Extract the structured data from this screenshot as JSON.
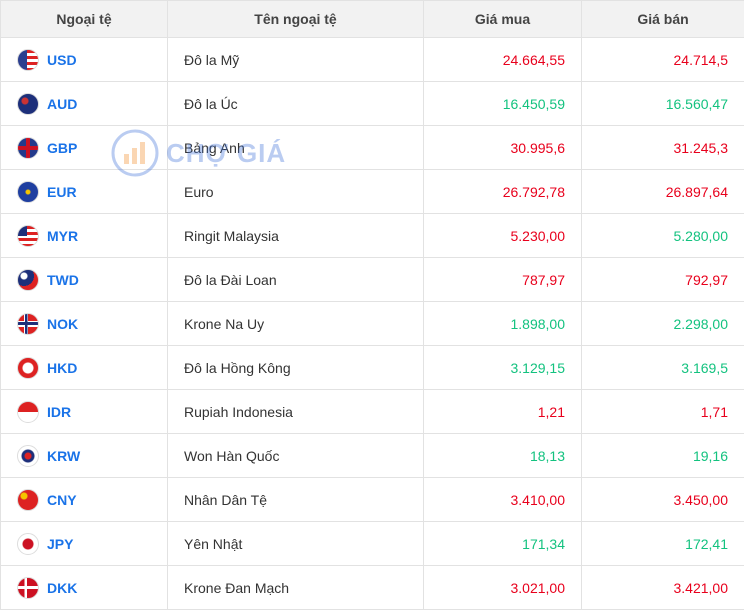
{
  "watermark": "CHỢ GIÁ",
  "table": {
    "columns": [
      "Ngoại tệ",
      "Tên ngoại tệ",
      "Giá mua",
      "Giá bán"
    ],
    "colors": {
      "up": "#13c27f",
      "down": "#e8001c"
    },
    "rows": [
      {
        "code": "USD",
        "name": "Đô la Mỹ",
        "buy": "24.664,55",
        "sell": "24.714,5",
        "buy_color": "down",
        "sell_color": "down"
      },
      {
        "code": "AUD",
        "name": "Đô la Úc",
        "buy": "16.450,59",
        "sell": "16.560,47",
        "buy_color": "up",
        "sell_color": "up"
      },
      {
        "code": "GBP",
        "name": "Bảng Anh",
        "buy": "30.995,6",
        "sell": "31.245,3",
        "buy_color": "down",
        "sell_color": "down"
      },
      {
        "code": "EUR",
        "name": "Euro",
        "buy": "26.792,78",
        "sell": "26.897,64",
        "buy_color": "down",
        "sell_color": "down"
      },
      {
        "code": "MYR",
        "name": "Ringit Malaysia",
        "buy": "5.230,00",
        "sell": "5.280,00",
        "buy_color": "down",
        "sell_color": "up"
      },
      {
        "code": "TWD",
        "name": "Đô la Đài Loan",
        "buy": "787,97",
        "sell": "792,97",
        "buy_color": "down",
        "sell_color": "down"
      },
      {
        "code": "NOK",
        "name": "Krone Na Uy",
        "buy": "1.898,00",
        "sell": "2.298,00",
        "buy_color": "up",
        "sell_color": "up"
      },
      {
        "code": "HKD",
        "name": "Đô la Hồng Kông",
        "buy": "3.129,15",
        "sell": "3.169,5",
        "buy_color": "up",
        "sell_color": "up"
      },
      {
        "code": "IDR",
        "name": "Rupiah Indonesia",
        "buy": "1,21",
        "sell": "1,71",
        "buy_color": "down",
        "sell_color": "down"
      },
      {
        "code": "KRW",
        "name": "Won Hàn Quốc",
        "buy": "18,13",
        "sell": "19,16",
        "buy_color": "up",
        "sell_color": "up"
      },
      {
        "code": "CNY",
        "name": "Nhân Dân Tệ",
        "buy": "3.410,00",
        "sell": "3.450,00",
        "buy_color": "down",
        "sell_color": "down"
      },
      {
        "code": "JPY",
        "name": "Yên Nhật",
        "buy": "171,34",
        "sell": "172,41",
        "buy_color": "up",
        "sell_color": "up"
      },
      {
        "code": "DKK",
        "name": "Krone Đan Mạch",
        "buy": "3.021,00",
        "sell": "3.421,00",
        "buy_color": "down",
        "sell_color": "down"
      }
    ]
  }
}
